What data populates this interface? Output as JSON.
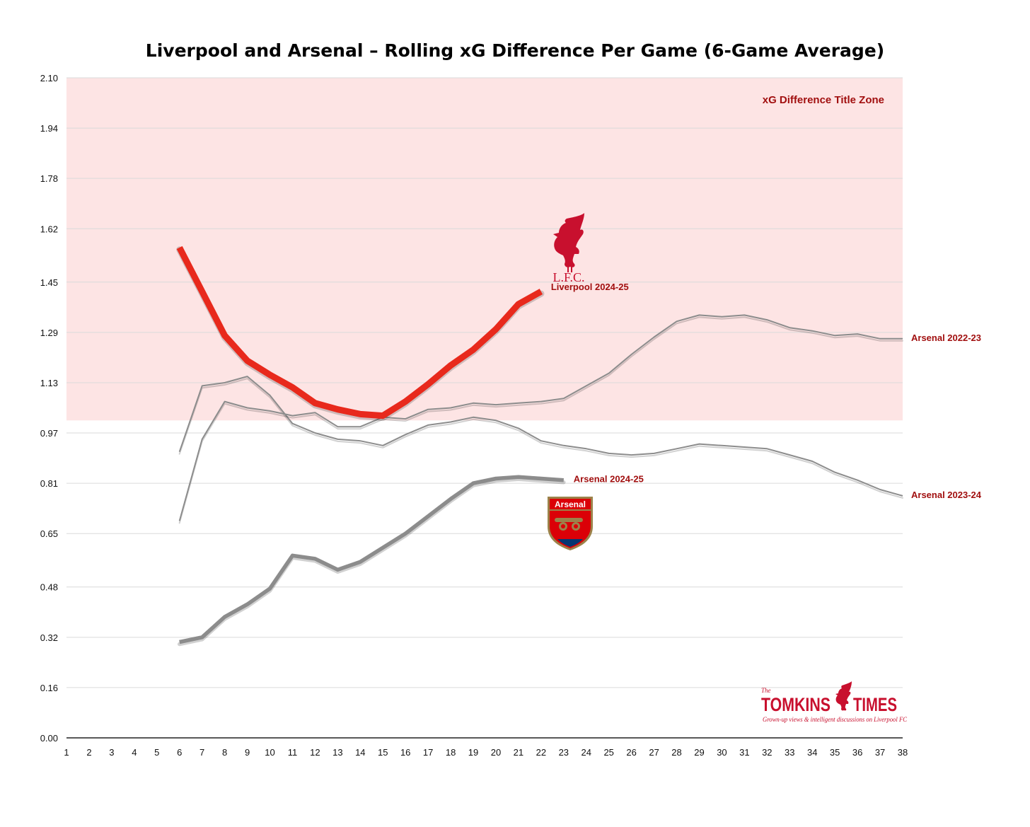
{
  "chart_data": {
    "type": "line",
    "title": "Liverpool and Arsenal – Rolling xG Difference Per Game (6-Game Average)",
    "xlabel": "",
    "ylabel": "",
    "xlim": [
      1,
      38
    ],
    "ylim": [
      0,
      2.1
    ],
    "x_ticks": [
      "1",
      "2",
      "3",
      "4",
      "5",
      "6",
      "7",
      "8",
      "9",
      "10",
      "11",
      "12",
      "13",
      "14",
      "15",
      "16",
      "17",
      "18",
      "19",
      "20",
      "21",
      "22",
      "23",
      "24",
      "25",
      "26",
      "27",
      "28",
      "29",
      "30",
      "31",
      "32",
      "33",
      "34",
      "35",
      "36",
      "37",
      "38"
    ],
    "y_ticks": [
      {
        "value": 0.0,
        "label": "0.00"
      },
      {
        "value": 0.16,
        "label": "0.16"
      },
      {
        "value": 0.32,
        "label": "0.32"
      },
      {
        "value": 0.48,
        "label": "0.48"
      },
      {
        "value": 0.65,
        "label": "0.65"
      },
      {
        "value": 0.81,
        "label": "0.81"
      },
      {
        "value": 0.97,
        "label": "0.97"
      },
      {
        "value": 1.13,
        "label": "1.13"
      },
      {
        "value": 1.29,
        "label": "1.29"
      },
      {
        "value": 1.45,
        "label": "1.45"
      },
      {
        "value": 1.62,
        "label": "1.62"
      },
      {
        "value": 1.78,
        "label": "1.78"
      },
      {
        "value": 1.94,
        "label": "1.94"
      },
      {
        "value": 2.1,
        "label": "2.10"
      }
    ],
    "grid": true,
    "legend": "inline labels at line ends",
    "title_zone": {
      "label": "xG Difference Title Zone",
      "from": 1.01,
      "to": 2.1,
      "color": "#fde4e4"
    },
    "series": [
      {
        "name": "Arsenal 2023-24",
        "color": "#8c8c8c",
        "width": "thin",
        "x": [
          6,
          7,
          8,
          9,
          10,
          11,
          12,
          13,
          14,
          15,
          16,
          17,
          18,
          19,
          20,
          21,
          22,
          23,
          24,
          25,
          26,
          27,
          28,
          29,
          30,
          31,
          32,
          33,
          34,
          35,
          36,
          37,
          38
        ],
        "values": [
          0.91,
          1.12,
          1.13,
          1.15,
          1.09,
          1.0,
          0.97,
          0.95,
          0.945,
          0.93,
          0.965,
          0.995,
          1.005,
          1.02,
          1.01,
          0.985,
          0.945,
          0.93,
          0.92,
          0.905,
          0.9,
          0.905,
          0.92,
          0.935,
          0.93,
          0.925,
          0.92,
          0.9,
          0.88,
          0.845,
          0.82,
          0.79,
          0.77
        ]
      },
      {
        "name": "Arsenal 2022-23",
        "color": "#8c8c8c",
        "width": "thin",
        "x": [
          6,
          7,
          8,
          9,
          10,
          11,
          12,
          13,
          14,
          15,
          16,
          17,
          18,
          19,
          20,
          21,
          22,
          23,
          24,
          25,
          26,
          27,
          28,
          29,
          30,
          31,
          32,
          33,
          34,
          35,
          36,
          37,
          38
        ],
        "values": [
          0.69,
          0.95,
          1.07,
          1.05,
          1.04,
          1.025,
          1.035,
          0.99,
          0.99,
          1.02,
          1.015,
          1.045,
          1.05,
          1.065,
          1.06,
          1.065,
          1.07,
          1.08,
          1.12,
          1.16,
          1.22,
          1.275,
          1.325,
          1.345,
          1.34,
          1.345,
          1.33,
          1.305,
          1.295,
          1.28,
          1.285,
          1.27,
          1.27
        ]
      },
      {
        "name": "Arsenal 2024-25",
        "color": "#8c8c8c",
        "width": "thick",
        "x": [
          6,
          7,
          8,
          9,
          10,
          11,
          12,
          13,
          14,
          15,
          16,
          17,
          18,
          19,
          20,
          21,
          22,
          23
        ],
        "values": [
          0.305,
          0.32,
          0.385,
          0.425,
          0.475,
          0.58,
          0.57,
          0.535,
          0.56,
          0.605,
          0.65,
          0.705,
          0.76,
          0.81,
          0.825,
          0.83,
          0.825,
          0.82
        ]
      },
      {
        "name": "Liverpool 2024-25",
        "color": "#e8291c",
        "width": "thickest",
        "x": [
          6,
          7,
          8,
          9,
          10,
          11,
          12,
          13,
          14,
          15,
          16,
          17,
          18,
          19,
          20,
          21,
          22
        ],
        "values": [
          1.56,
          1.42,
          1.28,
          1.2,
          1.155,
          1.115,
          1.065,
          1.045,
          1.03,
          1.025,
          1.07,
          1.125,
          1.185,
          1.235,
          1.3,
          1.38,
          1.42
        ]
      }
    ]
  },
  "logos": {
    "liverpool": {
      "name": "liverbird-crest-icon",
      "text": "L.F.C.",
      "color": "#c8102e"
    },
    "arsenal": {
      "name": "arsenal-crest-icon",
      "text": "Arsenal",
      "color": "#db0007"
    },
    "brand": {
      "name": "tomkins-times-logo",
      "the": "The",
      "left": "TOMKINS",
      "right": "TIMES",
      "tagline": "Grown-up views & intelligent discussions on Liverpool FC",
      "color": "#c8102e"
    }
  }
}
